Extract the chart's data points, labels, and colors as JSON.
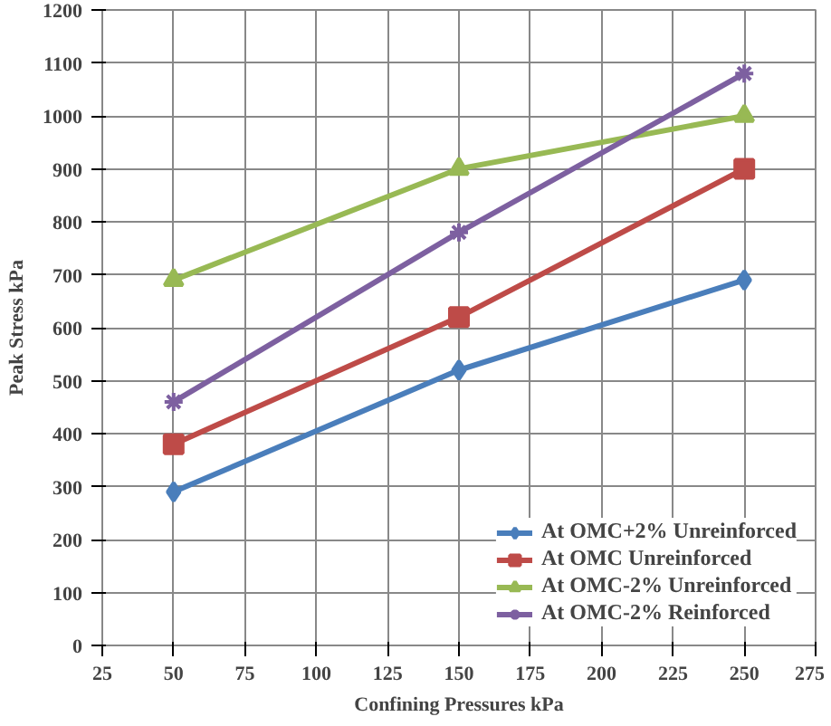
{
  "chart_data": {
    "type": "line",
    "xlabel": "Confining Pressures kPa",
    "ylabel": "Peak Stress kPa",
    "x": [
      50,
      150,
      250
    ],
    "series": [
      {
        "name": "At OMC+2% Unreinforced",
        "color": "#4a7ebb",
        "marker": "diamond",
        "values": [
          290,
          520,
          690
        ]
      },
      {
        "name": "At OMC Unreinforced",
        "color": "#be4b48",
        "marker": "square",
        "values": [
          380,
          620,
          900
        ]
      },
      {
        "name": "At OMC-2% Unreinforced",
        "color": "#98b954",
        "marker": "triangle",
        "values": [
          690,
          900,
          1000
        ]
      },
      {
        "name": "At OMC-2% Reinforced",
        "color": "#7d60a0",
        "marker": "cross",
        "values": [
          460,
          780,
          1080
        ]
      }
    ],
    "xlim": [
      25,
      275
    ],
    "xticks": [
      25,
      50,
      75,
      100,
      125,
      150,
      175,
      200,
      225,
      250,
      275
    ],
    "ylim": [
      0,
      1200
    ],
    "yticks": [
      0,
      100,
      200,
      300,
      400,
      500,
      600,
      700,
      800,
      900,
      1000,
      1100,
      1200
    ],
    "grid": true,
    "legend": "bottom right"
  }
}
